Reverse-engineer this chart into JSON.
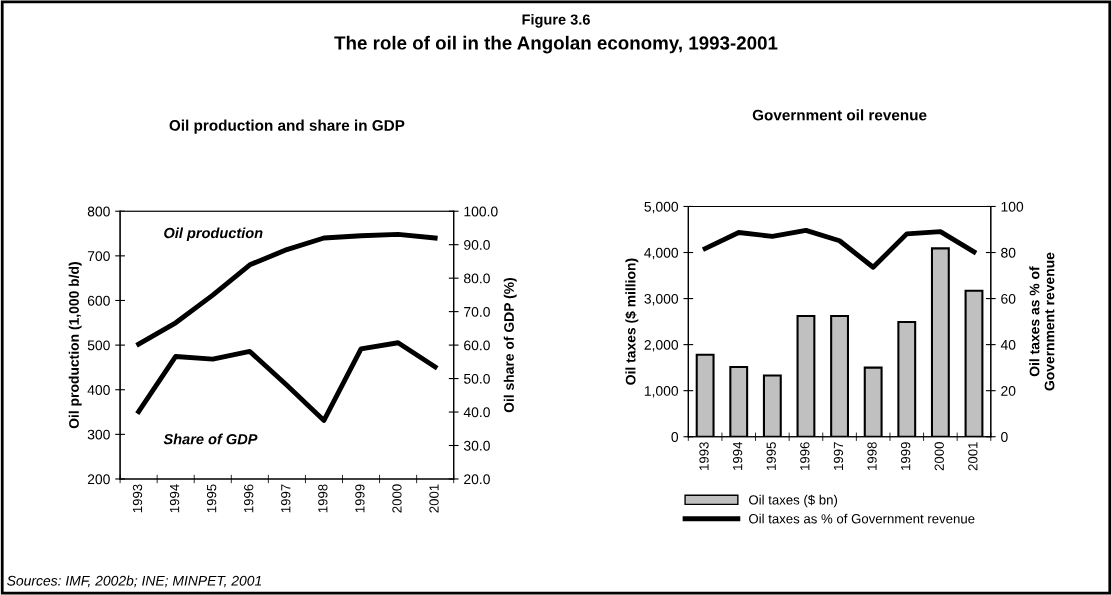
{
  "chart_data": [
    {
      "type": "line",
      "title": "Oil production and share in GDP",
      "ylabel": "Oil production (1,000 b/d)",
      "y2label": "Oil share of GDP (%)",
      "annotations": [
        "Figure 3.6",
        "The role of oil in the Angolan economy, 1993-2001",
        "Sources: IMF, 2002b; INE; MINPET, 2001"
      ],
      "categories": [
        "1993",
        "1994",
        "1995",
        "1996",
        "1997",
        "1998",
        "1999",
        "2000",
        "2001"
      ],
      "series": [
        {
          "name": "Oil production",
          "color": "#000000",
          "values": [
            502,
            550,
            612,
            680,
            714,
            740,
            745,
            748,
            740
          ]
        },
        {
          "name": "Share of GDP",
          "color": "#000000",
          "axis": "y2",
          "values": [
            40.1,
            56.6,
            55.8,
            58.1,
            48.0,
            37.5,
            58.9,
            60.7,
            53.5
          ]
        }
      ],
      "ylim": [
        200,
        800
      ],
      "yticks": [
        200,
        300,
        400,
        500,
        600,
        700,
        800
      ],
      "y2lim": [
        20,
        100
      ],
      "y2ticks": [
        {
          "value": 20,
          "label": "20.0"
        },
        {
          "value": 30,
          "label": "30.0"
        },
        {
          "value": 40,
          "label": "40.0"
        },
        {
          "value": 50,
          "label": "50.0"
        },
        {
          "value": 60,
          "label": "60.0"
        },
        {
          "value": 70,
          "label": "70.0"
        },
        {
          "value": 80,
          "label": "80.0"
        },
        {
          "value": 90,
          "label": "90.0"
        },
        {
          "value": 100,
          "label": "100.0"
        }
      ],
      "grid": false,
      "legend": false,
      "marker": "none",
      "line_style": "solid"
    },
    {
      "type": "bar",
      "title": "Government oil revenue",
      "ylabel": "Oil taxes ($ million)",
      "y2label": "Oil taxes as % of\nGovernment revenue",
      "categories": [
        "1993",
        "1994",
        "1995",
        "1996",
        "1997",
        "1998",
        "1999",
        "2000",
        "2001"
      ],
      "series": [
        {
          "name": "Oil taxes ($ bn)",
          "color": "#c0c0c0",
          "values": [
            1780,
            1515,
            1330,
            2620,
            2620,
            1500,
            2490,
            4090,
            3170
          ]
        },
        {
          "name": "Oil taxes as % of Government revenue",
          "type": "line",
          "color": "#000000",
          "axis": "y2",
          "values": [
            81.7,
            88.7,
            87.0,
            89.6,
            85.1,
            73.6,
            88.1,
            89.1,
            80.3
          ]
        }
      ],
      "ylim": [
        0,
        5000
      ],
      "yticks": [
        {
          "value": 0,
          "label": "0"
        },
        {
          "value": 1000,
          "label": "1,000"
        },
        {
          "value": 2000,
          "label": "2,000"
        },
        {
          "value": 3000,
          "label": "3,000"
        },
        {
          "value": 4000,
          "label": "4,000"
        },
        {
          "value": 5000,
          "label": "5,000"
        }
      ],
      "y2lim": [
        0,
        100
      ],
      "y2ticks": [
        0,
        20,
        40,
        60,
        80,
        100
      ],
      "grid": false,
      "legend": "bottom",
      "marker": "none",
      "line_style": "solid"
    }
  ]
}
